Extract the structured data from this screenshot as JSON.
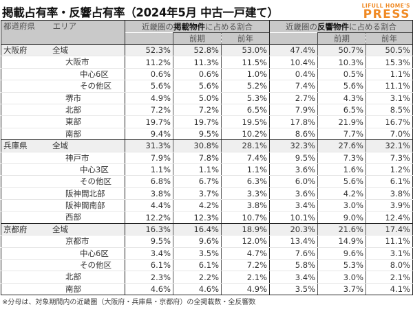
{
  "title": "掲載占有率・反響占有率（2024年5月 中古一戸建て）",
  "logo": {
    "line1": "LIFULL HOME'S",
    "line2": "PRESS",
    "color": "#f08a24"
  },
  "table": {
    "header": {
      "prefecture": "都道府県",
      "area": "エリア",
      "group_listing": {
        "prefix": "近畿圏の",
        "bold": "掲載物件",
        "suffix": "に占める割合"
      },
      "group_response": {
        "prefix": "近畿圏の",
        "bold": "反響物件",
        "suffix": "に占める割合"
      },
      "sub_prev_period": "前期",
      "sub_prev_year": "前年"
    },
    "groups": [
      {
        "prefecture": "大阪府",
        "rows": [
          {
            "label": "全域",
            "level": 0,
            "total": true,
            "values": [
              "52.3%",
              "52.8%",
              "53.0%",
              "47.4%",
              "50.7%",
              "50.5%"
            ]
          },
          {
            "label": "大阪市",
            "level": 1,
            "values": [
              "11.2%",
              "11.3%",
              "11.5%",
              "10.4%",
              "10.3%",
              "15.3%"
            ]
          },
          {
            "label": "中心6区",
            "level": 2,
            "values": [
              "0.6%",
              "0.6%",
              "1.0%",
              "0.4%",
              "0.5%",
              "1.1%"
            ]
          },
          {
            "label": "その他区",
            "level": 2,
            "values": [
              "5.6%",
              "5.6%",
              "5.2%",
              "7.4%",
              "5.6%",
              "11.1%"
            ]
          },
          {
            "label": "堺市",
            "level": 1,
            "values": [
              "4.9%",
              "5.0%",
              "5.3%",
              "2.7%",
              "4.3%",
              "3.1%"
            ]
          },
          {
            "label": "北部",
            "level": 1,
            "values": [
              "7.2%",
              "7.2%",
              "6.5%",
              "7.9%",
              "6.5%",
              "8.5%"
            ]
          },
          {
            "label": "東部",
            "level": 1,
            "values": [
              "19.7%",
              "19.7%",
              "19.5%",
              "17.8%",
              "21.9%",
              "16.7%"
            ]
          },
          {
            "label": "南部",
            "level": 1,
            "values": [
              "9.4%",
              "9.5%",
              "10.2%",
              "8.6%",
              "7.7%",
              "7.0%"
            ]
          }
        ]
      },
      {
        "prefecture": "兵庫県",
        "rows": [
          {
            "label": "全域",
            "level": 0,
            "total": true,
            "values": [
              "31.3%",
              "30.8%",
              "28.1%",
              "32.3%",
              "27.6%",
              "32.1%"
            ]
          },
          {
            "label": "神戸市",
            "level": 1,
            "values": [
              "7.9%",
              "7.8%",
              "7.4%",
              "9.5%",
              "7.3%",
              "7.3%"
            ]
          },
          {
            "label": "中心3区",
            "level": 2,
            "values": [
              "1.1%",
              "1.1%",
              "1.1%",
              "3.6%",
              "1.6%",
              "1.2%"
            ]
          },
          {
            "label": "その他区",
            "level": 2,
            "values": [
              "6.8%",
              "6.7%",
              "6.3%",
              "6.0%",
              "5.6%",
              "6.1%"
            ]
          },
          {
            "label": "阪神間北部",
            "level": 1,
            "values": [
              "3.8%",
              "3.7%",
              "3.3%",
              "3.6%",
              "4.2%",
              "3.8%"
            ]
          },
          {
            "label": "阪神間南部",
            "level": 1,
            "values": [
              "4.4%",
              "4.2%",
              "3.8%",
              "3.4%",
              "3.0%",
              "3.9%"
            ]
          },
          {
            "label": "西部",
            "level": 1,
            "values": [
              "12.2%",
              "12.3%",
              "10.7%",
              "10.1%",
              "9.0%",
              "12.4%"
            ]
          }
        ]
      },
      {
        "prefecture": "京都府",
        "rows": [
          {
            "label": "全域",
            "level": 0,
            "total": true,
            "values": [
              "16.3%",
              "16.4%",
              "18.9%",
              "20.3%",
              "21.6%",
              "17.4%"
            ]
          },
          {
            "label": "京都市",
            "level": 1,
            "values": [
              "9.5%",
              "9.6%",
              "12.0%",
              "13.4%",
              "14.9%",
              "11.1%"
            ]
          },
          {
            "label": "中心6区",
            "level": 2,
            "values": [
              "3.4%",
              "3.5%",
              "4.7%",
              "7.6%",
              "9.6%",
              "3.1%"
            ]
          },
          {
            "label": "その他区",
            "level": 2,
            "values": [
              "6.1%",
              "6.1%",
              "7.2%",
              "5.8%",
              "5.3%",
              "8.0%"
            ]
          },
          {
            "label": "北部",
            "level": 1,
            "values": [
              "2.3%",
              "2.2%",
              "2.1%",
              "3.4%",
              "3.0%",
              "2.1%"
            ]
          },
          {
            "label": "南部",
            "level": 1,
            "values": [
              "4.6%",
              "4.6%",
              "4.9%",
              "3.5%",
              "3.7%",
              "4.1%"
            ]
          }
        ]
      }
    ]
  },
  "footnote": "※分母は、対象期間内の近畿圏（大阪府・兵庫県・京都府）の全掲載数・全反響数"
}
